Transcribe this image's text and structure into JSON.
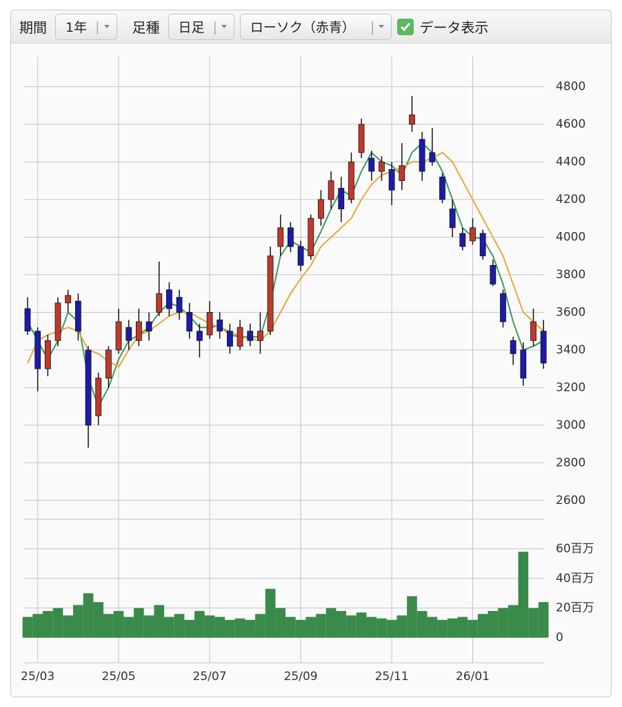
{
  "toolbar": {
    "period_label": "期間",
    "period": "1年",
    "bar_type_label": "足種",
    "bar_type": "日足",
    "style": "ローソク（赤青）",
    "show_data": {
      "label": "データ表示",
      "checked": true
    }
  },
  "chart_data": [
    {
      "type": "candlestick",
      "categories": [
        null,
        "25/03",
        null,
        null,
        null,
        null,
        null,
        null,
        null,
        "25/05",
        null,
        null,
        null,
        null,
        null,
        null,
        null,
        null,
        "25/07",
        null,
        null,
        null,
        null,
        null,
        null,
        null,
        null,
        "25/09",
        null,
        null,
        null,
        null,
        null,
        null,
        null,
        null,
        "25/11",
        null,
        null,
        null,
        null,
        null,
        null,
        null,
        "26/01",
        null,
        null,
        null,
        null,
        null,
        null,
        null
      ],
      "open": [
        3620,
        3500,
        3300,
        3450,
        3650,
        3660,
        3400,
        3050,
        3250,
        3400,
        3520,
        3450,
        3550,
        3600,
        3720,
        3680,
        3600,
        3500,
        3480,
        3560,
        3500,
        3420,
        3500,
        3450,
        3500,
        3950,
        4050,
        3950,
        3900,
        4100,
        4200,
        4260,
        4200,
        4450,
        4420,
        4350,
        4360,
        4300,
        4600,
        4520,
        4450,
        4320,
        4150,
        4020,
        3980,
        4020,
        3850,
        3700,
        3450,
        3400,
        3450,
        3500
      ],
      "high": [
        3680,
        3520,
        3480,
        3680,
        3720,
        3700,
        3420,
        3280,
        3420,
        3620,
        3560,
        3620,
        3600,
        3870,
        3760,
        3720,
        3650,
        3540,
        3660,
        3600,
        3540,
        3560,
        3540,
        3600,
        3950,
        4120,
        4080,
        3980,
        4120,
        4250,
        4350,
        4320,
        4450,
        4630,
        4460,
        4430,
        4400,
        4500,
        4750,
        4560,
        4580,
        4340,
        4200,
        4050,
        4100,
        4040,
        3880,
        3720,
        3470,
        3440,
        3620,
        3560
      ],
      "low": [
        3480,
        3180,
        3260,
        3420,
        3600,
        3450,
        2880,
        3000,
        3200,
        3380,
        3400,
        3420,
        3450,
        3580,
        3580,
        3560,
        3460,
        3360,
        3460,
        3460,
        3380,
        3400,
        3420,
        3380,
        3480,
        3900,
        3920,
        3820,
        3880,
        4060,
        4150,
        4080,
        4180,
        4420,
        4300,
        4300,
        4170,
        4250,
        4560,
        4300,
        4380,
        4180,
        4000,
        3930,
        3960,
        3880,
        3740,
        3520,
        3320,
        3210,
        3420,
        3300
      ],
      "close": [
        3500,
        3300,
        3450,
        3650,
        3690,
        3500,
        3000,
        3250,
        3400,
        3550,
        3450,
        3550,
        3500,
        3700,
        3620,
        3600,
        3500,
        3450,
        3600,
        3500,
        3420,
        3520,
        3450,
        3500,
        3900,
        4050,
        3950,
        3850,
        4100,
        4200,
        4300,
        4150,
        4400,
        4600,
        4350,
        4400,
        4250,
        4380,
        4650,
        4350,
        4400,
        4200,
        4050,
        3950,
        4050,
        3900,
        3750,
        3550,
        3380,
        3250,
        3550,
        3330
      ],
      "up_color": "#c0392b",
      "down_color": "#1c1ca8",
      "series": [
        {
          "color": "#3f9a5c",
          "values": [
            3550,
            3450,
            3350,
            3450,
            3600,
            3550,
            3250,
            3100,
            3200,
            3350,
            3450,
            3480,
            3520,
            3600,
            3650,
            3630,
            3580,
            3520,
            3520,
            3530,
            3480,
            3470,
            3470,
            3470,
            3650,
            3900,
            3980,
            3950,
            3920,
            4030,
            4150,
            4250,
            4220,
            4350,
            4450,
            4400,
            4380,
            4330,
            4450,
            4500,
            4450,
            4350,
            4200,
            4050,
            4000,
            3990,
            3900,
            3750,
            3550,
            3400,
            3420,
            3450
          ]
        },
        {
          "color": "#e6a83c",
          "values": [
            3330,
            3450,
            3480,
            3500,
            3520,
            3500,
            3400,
            3380,
            3340,
            3310,
            3400,
            3480,
            3500,
            3540,
            3580,
            3600,
            3600,
            3570,
            3540,
            3520,
            3500,
            3470,
            3460,
            3450,
            3500,
            3600,
            3700,
            3780,
            3850,
            3950,
            4000,
            4050,
            4100,
            4200,
            4280,
            4330,
            4350,
            4370,
            4400,
            4400,
            4420,
            4450,
            4400,
            4300,
            4200,
            4100,
            4000,
            3900,
            3750,
            3600,
            3550,
            3500
          ]
        }
      ],
      "ylim": [
        2500,
        4960
      ],
      "yticks": [
        2600,
        2800,
        3000,
        3200,
        3400,
        3600,
        3800,
        4000,
        4200,
        4400,
        4600,
        4800
      ],
      "grid": true
    },
    {
      "type": "bar",
      "color": "#3a8a4a",
      "values": [
        14000000,
        16000000,
        18000000,
        20000000,
        15000000,
        22000000,
        30000000,
        24000000,
        16000000,
        18000000,
        14000000,
        20000000,
        15000000,
        22000000,
        14000000,
        16000000,
        12000000,
        18000000,
        15000000,
        14000000,
        12000000,
        13000000,
        12000000,
        16000000,
        33000000,
        20000000,
        14000000,
        12000000,
        14000000,
        16000000,
        20000000,
        18000000,
        15000000,
        17000000,
        14000000,
        13000000,
        12000000,
        15000000,
        28000000,
        18000000,
        14000000,
        12000000,
        13000000,
        14000000,
        12000000,
        16000000,
        18000000,
        20000000,
        22000000,
        58000000,
        20000000,
        24000000
      ],
      "ylim": [
        -17000000,
        80000000
      ],
      "yticks": [
        0,
        {
          "value": 20000000,
          "label": "20百万"
        },
        {
          "value": 40000000,
          "label": "40百万"
        },
        {
          "value": 60000000,
          "label": "60百万"
        }
      ],
      "grid": true
    }
  ]
}
